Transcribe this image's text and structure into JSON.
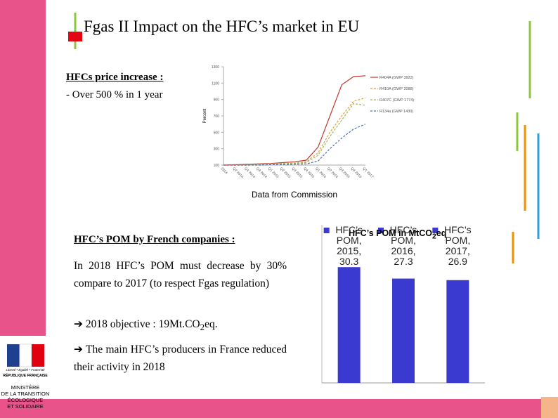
{
  "title": "Fgas II Impact on the HFC’s market in EU",
  "price": {
    "heading": "HFCs price increase :",
    "text": "- Over 500 % in 1 year"
  },
  "source": "Data from Commission",
  "pom": {
    "heading": "HFC’s POM by French companies :",
    "text": "In 2018 HFC’s POM must decrease by 30% compare to 2017 (to respect Fgas regulation)",
    "objective": {
      "before": "2018 objective : 19Mt.CO",
      "sub": "2",
      "after": "eq."
    },
    "producers": "The main HFC’s producers in France reduced their activity in 2018"
  },
  "logo": {
    "motto": "Liberté • Égalité • Fraternité",
    "republic": "RÉPUBLIQUE FRANÇAISE",
    "ministry": [
      "MINISTÈRE",
      "DE LA TRANSITION",
      "ÉCOLOGIQUE",
      "ET SOLIDAIRE"
    ]
  },
  "chart_data": [
    {
      "type": "line",
      "y_label": "Percent",
      "categories": [
        "2014",
        "Q2 2014",
        "Q3 2014",
        "Q4 2014",
        "Q1 2015",
        "Q2 2015",
        "Q3 2015",
        "Q4 2015",
        "Q1 2016",
        "Q2 2016",
        "Q3 2016",
        "Q4 2016",
        "Q1 2017"
      ],
      "ylim": [
        100,
        1300
      ],
      "yticks": [
        100,
        300,
        500,
        700,
        900,
        1100,
        1300
      ],
      "series": [
        {
          "name": "R404A (GWP 3922)",
          "color": "#c0392b",
          "style": "solid",
          "values": [
            100,
            105,
            110,
            115,
            120,
            130,
            140,
            160,
            320,
            700,
            1080,
            1180,
            1190
          ]
        },
        {
          "name": "R410A (GWP 2088)",
          "color": "#e59c3b",
          "style": "dashed",
          "values": [
            100,
            100,
            105,
            110,
            115,
            120,
            125,
            140,
            250,
            500,
            700,
            880,
            920
          ]
        },
        {
          "name": "R407C (GWP 1774)",
          "color": "#9bbb59",
          "style": "dashed",
          "values": [
            100,
            100,
            100,
            105,
            110,
            115,
            120,
            130,
            220,
            450,
            650,
            850,
            830
          ]
        },
        {
          "name": "R134a (GWP 1430)",
          "color": "#4f6fa5",
          "style": "dashed",
          "values": [
            100,
            100,
            100,
            100,
            105,
            105,
            110,
            115,
            150,
            300,
            430,
            540,
            600
          ]
        }
      ]
    },
    {
      "type": "bar",
      "title": {
        "text": "HFC’s POM in MtCO",
        "sub": "2",
        "after": "eq"
      },
      "categories": [
        "2015",
        "2016",
        "2017"
      ],
      "ylim": [
        0,
        32
      ],
      "series": [
        {
          "name": "HFC’s POM",
          "color": "#3a3ad0",
          "values": [
            30.3,
            27.3,
            26.9
          ]
        }
      ]
    }
  ]
}
